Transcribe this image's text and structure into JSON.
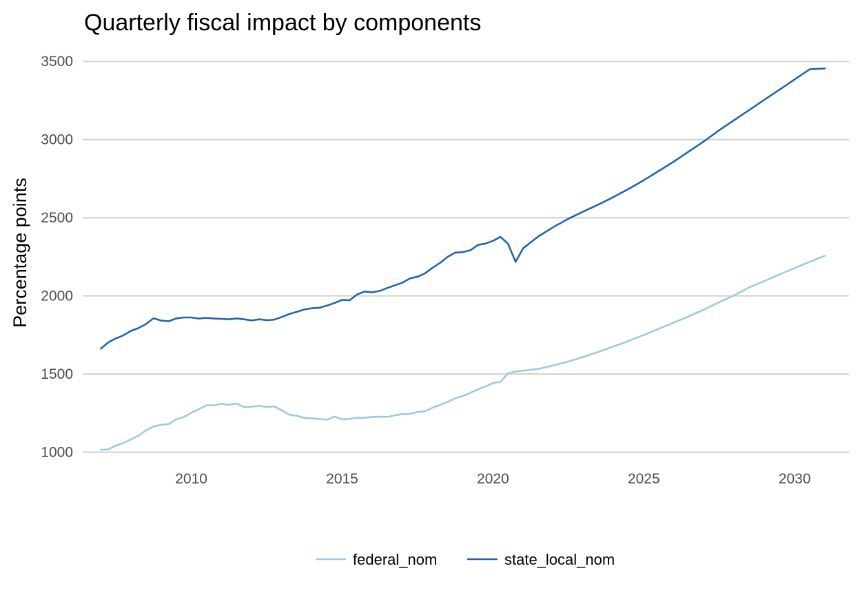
{
  "chart_data": {
    "type": "line",
    "title": "Quarterly fiscal impact  by components",
    "xlabel": "",
    "ylabel": "Percentage points",
    "xlim": [
      2006.4,
      2031.8
    ],
    "ylim": [
      950,
      3620
    ],
    "grid": true,
    "legend_position": "bottom",
    "x_ticks": [
      2010,
      2015,
      2020,
      2025,
      2030
    ],
    "y_ticks": [
      1000,
      1500,
      2000,
      2500,
      3000,
      3500
    ],
    "series": [
      {
        "name": "federal_nom",
        "color": "#9ecae1",
        "points": [
          [
            2007.0,
            1015
          ],
          [
            2007.25,
            1018
          ],
          [
            2007.5,
            1042
          ],
          [
            2007.75,
            1058
          ],
          [
            2008.0,
            1082
          ],
          [
            2008.25,
            1106
          ],
          [
            2008.5,
            1140
          ],
          [
            2008.75,
            1165
          ],
          [
            2009.0,
            1175
          ],
          [
            2009.25,
            1180
          ],
          [
            2009.5,
            1210
          ],
          [
            2009.75,
            1225
          ],
          [
            2010.0,
            1252
          ],
          [
            2010.25,
            1275
          ],
          [
            2010.5,
            1300
          ],
          [
            2010.75,
            1300
          ],
          [
            2011.0,
            1310
          ],
          [
            2011.25,
            1303
          ],
          [
            2011.5,
            1312
          ],
          [
            2011.75,
            1288
          ],
          [
            2012.0,
            1292
          ],
          [
            2012.25,
            1296
          ],
          [
            2012.5,
            1290
          ],
          [
            2012.75,
            1293
          ],
          [
            2013.0,
            1268
          ],
          [
            2013.25,
            1240
          ],
          [
            2013.5,
            1233
          ],
          [
            2013.75,
            1220
          ],
          [
            2014.0,
            1216
          ],
          [
            2014.25,
            1212
          ],
          [
            2014.5,
            1208
          ],
          [
            2014.75,
            1228
          ],
          [
            2015.0,
            1210
          ],
          [
            2015.25,
            1213
          ],
          [
            2015.5,
            1220
          ],
          [
            2015.75,
            1220
          ],
          [
            2016.0,
            1226
          ],
          [
            2016.25,
            1227
          ],
          [
            2016.5,
            1226
          ],
          [
            2016.75,
            1236
          ],
          [
            2017.0,
            1244
          ],
          [
            2017.25,
            1246
          ],
          [
            2017.5,
            1257
          ],
          [
            2017.75,
            1262
          ],
          [
            2018.0,
            1285
          ],
          [
            2018.25,
            1302
          ],
          [
            2018.5,
            1322
          ],
          [
            2018.75,
            1345
          ],
          [
            2019.0,
            1360
          ],
          [
            2019.25,
            1380
          ],
          [
            2019.5,
            1402
          ],
          [
            2019.75,
            1420
          ],
          [
            2020.0,
            1442
          ],
          [
            2020.25,
            1450
          ],
          [
            2020.5,
            1505
          ],
          [
            2020.75,
            1516
          ],
          [
            2021.0,
            1522
          ],
          [
            2021.5,
            1533
          ],
          [
            2022.0,
            1555
          ],
          [
            2022.5,
            1580
          ],
          [
            2023.0,
            1610
          ],
          [
            2023.5,
            1642
          ],
          [
            2024.0,
            1677
          ],
          [
            2024.5,
            1712
          ],
          [
            2025.0,
            1750
          ],
          [
            2025.5,
            1790
          ],
          [
            2026.0,
            1830
          ],
          [
            2026.5,
            1870
          ],
          [
            2027.0,
            1913
          ],
          [
            2027.5,
            1960
          ],
          [
            2028.0,
            2005
          ],
          [
            2028.5,
            2055
          ],
          [
            2029.0,
            2095
          ],
          [
            2029.5,
            2138
          ],
          [
            2030.0,
            2178
          ],
          [
            2030.5,
            2218
          ],
          [
            2031.0,
            2257
          ]
        ]
      },
      {
        "name": "state_local_nom",
        "color": "#2166ac",
        "points": [
          [
            2007.0,
            1662
          ],
          [
            2007.25,
            1703
          ],
          [
            2007.5,
            1728
          ],
          [
            2007.75,
            1748
          ],
          [
            2008.0,
            1776
          ],
          [
            2008.25,
            1794
          ],
          [
            2008.5,
            1820
          ],
          [
            2008.75,
            1857
          ],
          [
            2009.0,
            1842
          ],
          [
            2009.25,
            1838
          ],
          [
            2009.5,
            1856
          ],
          [
            2009.75,
            1862
          ],
          [
            2010.0,
            1862
          ],
          [
            2010.25,
            1855
          ],
          [
            2010.5,
            1860
          ],
          [
            2010.75,
            1855
          ],
          [
            2011.0,
            1853
          ],
          [
            2011.25,
            1850
          ],
          [
            2011.5,
            1856
          ],
          [
            2011.75,
            1850
          ],
          [
            2012.0,
            1843
          ],
          [
            2012.25,
            1850
          ],
          [
            2012.5,
            1845
          ],
          [
            2012.75,
            1848
          ],
          [
            2013.0,
            1865
          ],
          [
            2013.25,
            1884
          ],
          [
            2013.5,
            1898
          ],
          [
            2013.75,
            1913
          ],
          [
            2014.0,
            1921
          ],
          [
            2014.25,
            1924
          ],
          [
            2014.5,
            1938
          ],
          [
            2014.75,
            1955
          ],
          [
            2015.0,
            1975
          ],
          [
            2015.25,
            1972
          ],
          [
            2015.5,
            2010
          ],
          [
            2015.75,
            2028
          ],
          [
            2016.0,
            2023
          ],
          [
            2016.25,
            2032
          ],
          [
            2016.5,
            2051
          ],
          [
            2016.75,
            2068
          ],
          [
            2017.0,
            2085
          ],
          [
            2017.25,
            2112
          ],
          [
            2017.5,
            2123
          ],
          [
            2017.75,
            2145
          ],
          [
            2018.0,
            2180
          ],
          [
            2018.25,
            2212
          ],
          [
            2018.5,
            2250
          ],
          [
            2018.75,
            2277
          ],
          [
            2019.0,
            2280
          ],
          [
            2019.25,
            2292
          ],
          [
            2019.5,
            2326
          ],
          [
            2019.75,
            2335
          ],
          [
            2020.0,
            2352
          ],
          [
            2020.25,
            2378
          ],
          [
            2020.5,
            2333
          ],
          [
            2020.75,
            2218
          ],
          [
            2021.0,
            2305
          ],
          [
            2021.5,
            2380
          ],
          [
            2022.0,
            2440
          ],
          [
            2022.5,
            2494
          ],
          [
            2023.0,
            2540
          ],
          [
            2023.5,
            2585
          ],
          [
            2024.0,
            2633
          ],
          [
            2024.5,
            2685
          ],
          [
            2025.0,
            2740
          ],
          [
            2025.5,
            2800
          ],
          [
            2026.0,
            2860
          ],
          [
            2026.5,
            2925
          ],
          [
            2027.0,
            2990
          ],
          [
            2027.5,
            3060
          ],
          [
            2028.0,
            3125
          ],
          [
            2028.5,
            3190
          ],
          [
            2029.0,
            3255
          ],
          [
            2029.5,
            3320
          ],
          [
            2030.0,
            3385
          ],
          [
            2030.5,
            3450
          ],
          [
            2031.0,
            3455
          ]
        ]
      }
    ]
  }
}
